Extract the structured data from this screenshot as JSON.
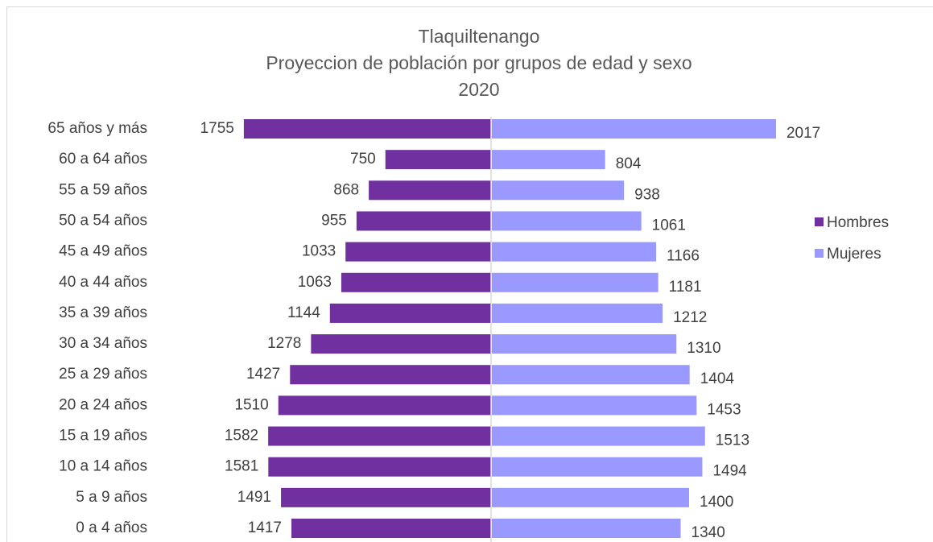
{
  "chart_data": {
    "type": "pyramid",
    "title": [
      "Tlaquiltenango",
      "Proyeccion de población por grupos de edad y sexo",
      "2020"
    ],
    "categories": [
      "0 a 4 años",
      "5 a 9 años",
      "10 a 14 años",
      "15 a 19 años",
      "20 a 24 años",
      "25 a 29 años",
      "30 a 34 años",
      "35 a 39 años",
      "40 a 44 años",
      "45 a 49 años",
      "50 a 54 años",
      "55 a 59 años",
      "60 a 64 años",
      "65 años y más"
    ],
    "series": [
      {
        "name": "Hombres",
        "color": "#7030a0",
        "values": [
          1417,
          1491,
          1581,
          1582,
          1510,
          1427,
          1278,
          1144,
          1063,
          1033,
          955,
          868,
          750,
          1755
        ]
      },
      {
        "name": "Mujeres",
        "color": "#9999ff",
        "values": [
          1340,
          1400,
          1494,
          1513,
          1453,
          1404,
          1310,
          1212,
          1181,
          1166,
          1061,
          938,
          804,
          2017
        ]
      }
    ],
    "legend": "right"
  }
}
